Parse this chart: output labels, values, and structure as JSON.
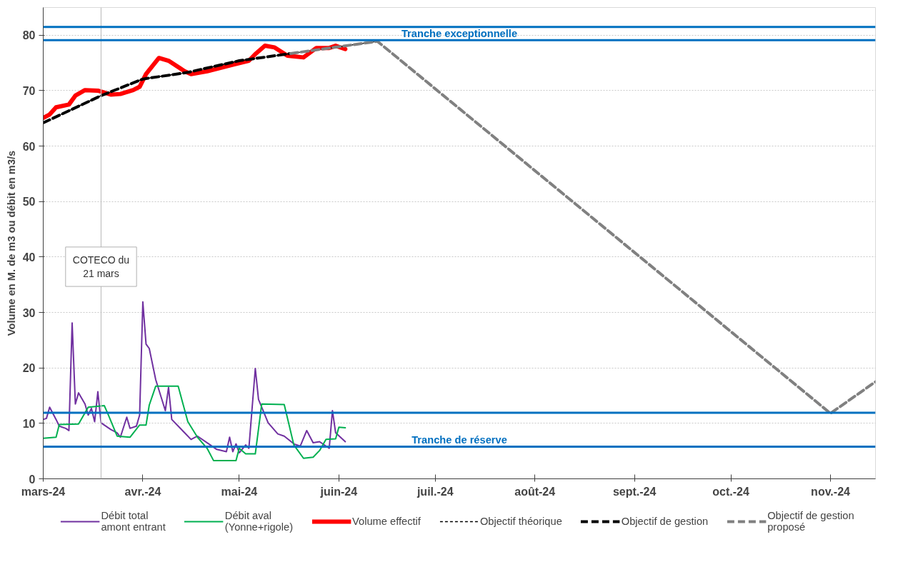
{
  "chart_data": {
    "type": "line",
    "ylabel": "Volume en M. de m3 ou débit en m3/s",
    "xlim": [
      "2024-03-01",
      "2024-11-15"
    ],
    "xticks": [
      {
        "value": "2024-03-01",
        "label": "mars-24"
      },
      {
        "value": "2024-04-01",
        "label": "avr.-24"
      },
      {
        "value": "2024-05-01",
        "label": "mai-24"
      },
      {
        "value": "2024-06-01",
        "label": "juin-24"
      },
      {
        "value": "2024-07-01",
        "label": "juil.-24"
      },
      {
        "value": "2024-08-01",
        "label": "août-24"
      },
      {
        "value": "2024-09-01",
        "label": "sept.-24"
      },
      {
        "value": "2024-10-01",
        "label": "oct.-24"
      },
      {
        "value": "2024-11-01",
        "label": "nov.-24"
      }
    ],
    "ylim": [
      0,
      85
    ],
    "yticks": [
      0,
      10,
      20,
      30,
      40,
      50,
      60,
      70,
      80
    ],
    "grid": "y",
    "legend": "bottom",
    "series": [
      {
        "name": "Débit total\namont entrant",
        "color": "#7030a0",
        "line_style": "solid",
        "x": [
          "2024-03-01",
          "2024-03-02",
          "2024-03-03",
          "2024-03-05",
          "2024-03-06",
          "2024-03-08",
          "2024-03-09",
          "2024-03-10",
          "2024-03-11",
          "2024-03-12",
          "2024-03-14",
          "2024-03-15",
          "2024-03-16",
          "2024-03-17",
          "2024-03-18",
          "2024-03-19",
          "2024-03-22",
          "2024-03-24",
          "2024-03-25",
          "2024-03-27",
          "2024-03-28",
          "2024-03-30",
          "2024-03-31",
          "2024-04-01",
          "2024-04-02",
          "2024-04-03",
          "2024-04-05",
          "2024-04-08",
          "2024-04-09",
          "2024-04-10",
          "2024-04-14",
          "2024-04-16",
          "2024-04-18",
          "2024-04-22",
          "2024-04-24",
          "2024-04-27",
          "2024-04-28",
          "2024-04-29",
          "2024-04-30",
          "2024-05-01",
          "2024-05-03",
          "2024-05-04",
          "2024-05-06",
          "2024-05-07",
          "2024-05-10",
          "2024-05-13",
          "2024-05-15",
          "2024-05-18",
          "2024-05-20",
          "2024-05-22",
          "2024-05-24",
          "2024-05-26",
          "2024-05-29",
          "2024-05-30",
          "2024-05-31",
          "2024-06-03"
        ],
        "values": [
          10.7,
          10.9,
          12.9,
          10.7,
          9.5,
          9.1,
          8.7,
          28.1,
          13.5,
          15.5,
          13.5,
          11.5,
          12.7,
          10.3,
          15.7,
          10.1,
          8.9,
          8.3,
          7.5,
          11.1,
          9.1,
          9.5,
          11.5,
          31.9,
          24.3,
          23.5,
          17.9,
          12.3,
          16.5,
          10.7,
          8.3,
          7.1,
          7.7,
          6.1,
          5.3,
          4.9,
          7.5,
          4.9,
          6.3,
          4.7,
          6.1,
          5.5,
          19.9,
          14.3,
          10.1,
          8.1,
          7.7,
          6.3,
          5.9,
          8.7,
          6.5,
          6.7,
          5.5,
          12.3,
          8.3,
          6.7
        ]
      },
      {
        "name": "Débit aval\n(Yonne+rigole)",
        "color": "#00b050",
        "line_style": "solid",
        "x": [
          "2024-03-01",
          "2024-03-05",
          "2024-03-06",
          "2024-03-12",
          "2024-03-15",
          "2024-03-20",
          "2024-03-21",
          "2024-03-24",
          "2024-03-28",
          "2024-03-31",
          "2024-04-02",
          "2024-04-03",
          "2024-04-05",
          "2024-04-12",
          "2024-04-15",
          "2024-04-18",
          "2024-04-21",
          "2024-04-23",
          "2024-04-30",
          "2024-05-01",
          "2024-05-03",
          "2024-05-06",
          "2024-05-08",
          "2024-05-15",
          "2024-05-18",
          "2024-05-21",
          "2024-05-24",
          "2024-05-26",
          "2024-05-28",
          "2024-05-31",
          "2024-06-01",
          "2024-06-03"
        ],
        "values": [
          7.3,
          7.5,
          9.8,
          9.9,
          12.9,
          13.2,
          11.9,
          7.7,
          7.5,
          9.7,
          9.7,
          13.3,
          16.7,
          16.7,
          10.3,
          7.5,
          5.5,
          3.3,
          3.3,
          5.5,
          4.5,
          4.5,
          13.5,
          13.4,
          6.1,
          3.7,
          3.9,
          5.1,
          7.1,
          7.2,
          9.3,
          9.2
        ]
      },
      {
        "name": "Volume effectif",
        "color": "#ff0000",
        "line_style": "solid",
        "x": [
          "2024-03-01",
          "2024-03-03",
          "2024-03-05",
          "2024-03-09",
          "2024-03-11",
          "2024-03-14",
          "2024-03-18",
          "2024-03-22",
          "2024-03-25",
          "2024-03-29",
          "2024-03-31",
          "2024-04-02",
          "2024-04-06",
          "2024-04-09",
          "2024-04-14",
          "2024-04-16",
          "2024-04-21",
          "2024-04-29",
          "2024-05-04",
          "2024-05-06",
          "2024-05-09",
          "2024-05-12",
          "2024-05-16",
          "2024-05-21",
          "2024-05-25",
          "2024-05-29",
          "2024-05-31",
          "2024-06-03"
        ],
        "values": [
          65.1,
          65.7,
          67.0,
          67.5,
          69.1,
          70.1,
          70.0,
          69.3,
          69.4,
          70.1,
          70.7,
          73.0,
          75.9,
          75.4,
          73.5,
          73.0,
          73.5,
          74.7,
          75.4,
          76.6,
          78.1,
          77.8,
          76.3,
          76.0,
          77.7,
          77.7,
          78.1,
          77.5
        ]
      },
      {
        "name": "Objectif théorique",
        "color": "#000000",
        "line_style": "dashed",
        "x": [
          "2024-03-01",
          "2024-03-19",
          "2024-04-01",
          "2024-04-15",
          "2024-05-01",
          "2024-05-17",
          "2024-06-13"
        ],
        "values": [
          64.2,
          69.1,
          72.1,
          73.3,
          75.4,
          76.7,
          78.9
        ]
      },
      {
        "name": "Objectif de gestion",
        "color": "#000000",
        "line_style": "dashed",
        "x": [
          "2024-03-01",
          "2024-03-19",
          "2024-04-01",
          "2024-04-15",
          "2024-05-01",
          "2024-05-17"
        ],
        "values": [
          64.2,
          69.1,
          72.1,
          73.3,
          75.4,
          76.7
        ]
      },
      {
        "name": "Objectif de gestion\nproposé",
        "color": "#808080",
        "line_style": "dashed",
        "x": [
          "2024-05-17",
          "2024-06-13",
          "2024-11-01",
          "2024-11-15"
        ],
        "values": [
          76.7,
          78.9,
          11.8,
          17.5
        ]
      }
    ],
    "ref_lines": [
      {
        "axis": "x",
        "value": "2024-03-19",
        "label": "COTECO du\n21 mars",
        "color": "#c0c0c0"
      },
      {
        "axis": "y",
        "value": 81.5,
        "color": "#0070c0"
      },
      {
        "axis": "y",
        "value": 79.1,
        "label": "Tranche exceptionnelle",
        "color": "#0070c0"
      },
      {
        "axis": "y",
        "value": 11.9,
        "color": "#0070c0"
      },
      {
        "axis": "y",
        "value": 5.8,
        "label": "Tranche de réserve",
        "color": "#0070c0"
      }
    ]
  }
}
